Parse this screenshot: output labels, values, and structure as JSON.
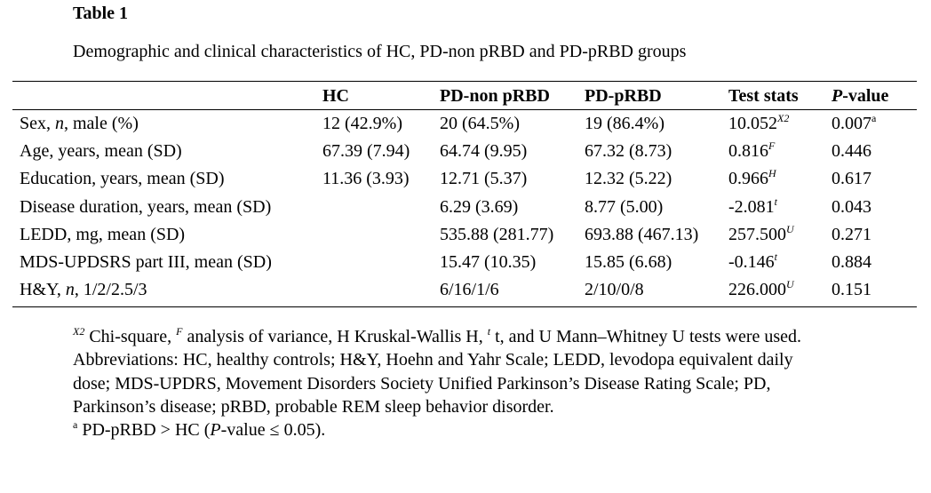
{
  "table_number": "Table 1",
  "caption": "Demographic and clinical characteristics of HC, PD-non pRBD and PD-pRBD groups",
  "headers": {
    "hc": "HC",
    "pd_non_prbd": "PD-non pRBD",
    "pd_prbd": "PD-pRBD",
    "test_stats": "Test stats",
    "p_italic": "P",
    "p_rest": "-value"
  },
  "rows": [
    {
      "label_a": "Sex, ",
      "label_i": "n",
      "label_b": ", male (%)",
      "hc": "12 (42.9%)",
      "non": "20 (64.5%)",
      "prbd": "19 (86.4%)",
      "stat": "10.052",
      "stat_sup": "X2",
      "p": "0.007",
      "p_sup": "a"
    },
    {
      "label_a": "Age, years, mean (SD)",
      "label_i": "",
      "label_b": "",
      "hc": "67.39 (7.94)",
      "non": "64.74 (9.95)",
      "prbd": "67.32 (8.73)",
      "stat": "0.816",
      "stat_sup": "F",
      "p": "0.446",
      "p_sup": ""
    },
    {
      "label_a": "Education, years, mean (SD)",
      "label_i": "",
      "label_b": "",
      "hc": "11.36 (3.93)",
      "non": "12.71 (5.37)",
      "prbd": "12.32 (5.22)",
      "stat": "0.966",
      "stat_sup": "H",
      "p": "0.617",
      "p_sup": ""
    },
    {
      "label_a": "Disease duration, years, mean (SD)",
      "label_i": "",
      "label_b": "",
      "hc": "",
      "non": "6.29 (3.69)",
      "prbd": "8.77 (5.00)",
      "stat": "-2.081",
      "stat_sup": "t",
      "p": "0.043",
      "p_sup": ""
    },
    {
      "label_a": "LEDD, mg, mean (SD)",
      "label_i": "",
      "label_b": "",
      "hc": "",
      "non": "535.88 (281.77)",
      "prbd": "693.88 (467.13)",
      "stat": "257.500",
      "stat_sup": "U",
      "p": "0.271",
      "p_sup": ""
    },
    {
      "label_a": "MDS-UPDSRS part III, mean (SD)",
      "label_i": "",
      "label_b": "",
      "hc": "",
      "non": "15.47 (10.35)",
      "prbd": "15.85 (6.68)",
      "stat": "-0.146",
      "stat_sup": "t",
      "p": "0.884",
      "p_sup": ""
    },
    {
      "label_a": "H&Y, ",
      "label_i": "n",
      "label_b": ", 1/2/2.5/3",
      "hc": "",
      "non": "6/16/1/6",
      "prbd": "2/10/0/8",
      "stat": "226.000",
      "stat_sup": "U",
      "p": "0.151",
      "p_sup": ""
    }
  ],
  "footnote": {
    "sup_x2": "X2",
    "t1": " Chi-square, ",
    "sup_f": "F",
    "t2": " analysis of variance, H Kruskal-Wallis H, ",
    "sup_t": "t",
    "t3": " t, and U Mann–Whitney U tests were used. Abbreviations: HC, healthy controls; H&Y, Hoehn and Yahr Scale; LEDD, levodopa equivalent daily dose; MDS-UPDRS, Movement Disorders Society Unified Parkinson’s Disease Rating Scale; PD, Parkinson’s disease; pRBD, probable REM sleep behavior disorder.",
    "sup_a": "a",
    "a1": " PD-pRBD > HC (",
    "a_italic": "P",
    "a2": "-value ≤ 0.05)."
  }
}
